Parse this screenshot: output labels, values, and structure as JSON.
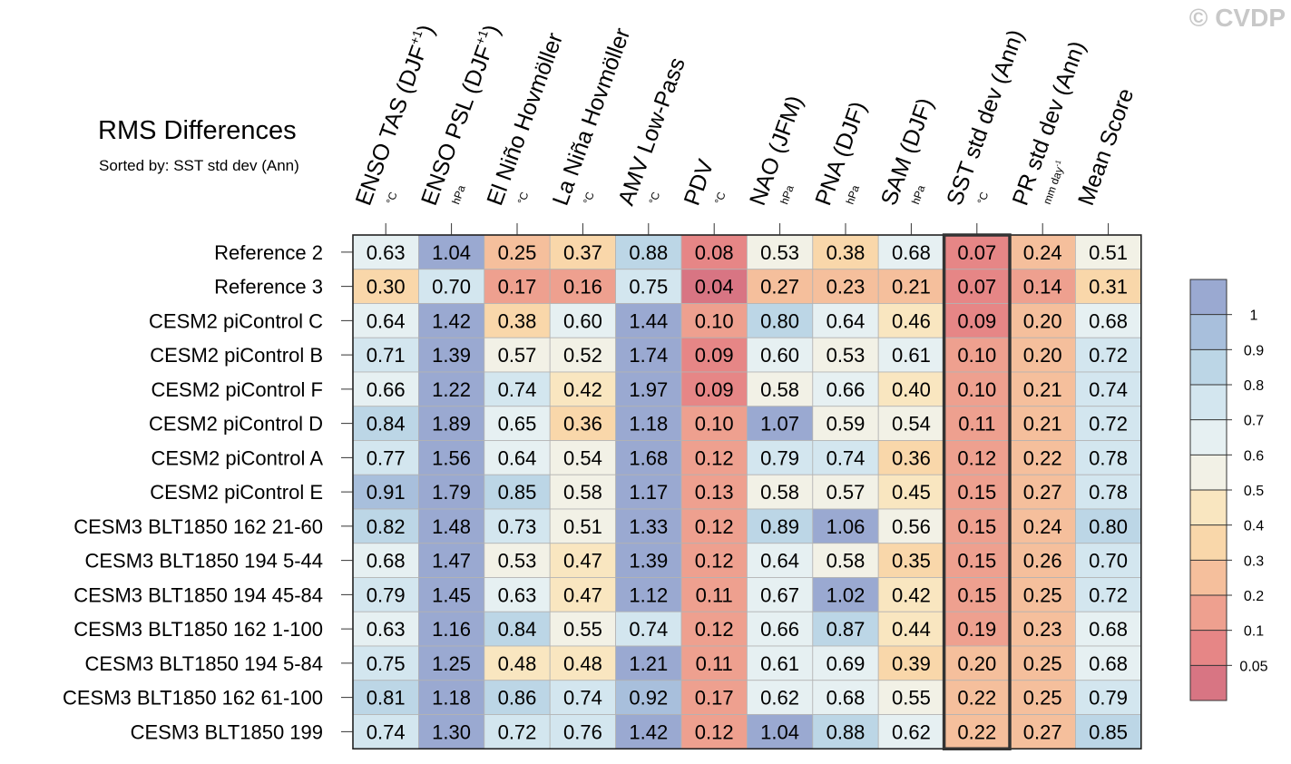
{
  "watermark": "© CVDP",
  "chart_data": {
    "type": "heatmap",
    "title": "RMS Differences",
    "subtitle": "Sorted by: SST std dev (Ann)",
    "highlight_column": 9,
    "columns": [
      {
        "label": "ENSO TAS (DJF",
        "sup": "+1",
        "suffix": ")",
        "unit": "°C"
      },
      {
        "label": "ENSO PSL (DJF",
        "sup": "+1",
        "suffix": ")",
        "unit": "hPa"
      },
      {
        "label": "El Niño Hovmöller",
        "sup": "",
        "suffix": "",
        "unit": "°C"
      },
      {
        "label": "La Niña Hovmöller",
        "sup": "",
        "suffix": "",
        "unit": "°C"
      },
      {
        "label": "AMV Low-Pass",
        "sup": "",
        "suffix": "",
        "unit": "°C"
      },
      {
        "label": "PDV",
        "sup": "",
        "suffix": "",
        "unit": "°C"
      },
      {
        "label": "NAO (JFM)",
        "sup": "",
        "suffix": "",
        "unit": "hPa"
      },
      {
        "label": "PNA (DJF)",
        "sup": "",
        "suffix": "",
        "unit": "hPa"
      },
      {
        "label": "SAM (DJF)",
        "sup": "",
        "suffix": "",
        "unit": "hPa"
      },
      {
        "label": "SST std dev (Ann)",
        "sup": "",
        "suffix": "",
        "unit": "°C"
      },
      {
        "label": "PR std dev (Ann)",
        "sup": "",
        "suffix": "",
        "unit": "mm day",
        "unit_sup": "-1"
      },
      {
        "label": "Mean Score",
        "sup": "",
        "suffix": "",
        "unit": ""
      }
    ],
    "rows": [
      {
        "name": "Reference 2",
        "values": [
          "0.63",
          "1.04",
          "0.25",
          "0.37",
          "0.88",
          "0.08",
          "0.53",
          "0.38",
          "0.68",
          "0.07",
          "0.24",
          "0.51"
        ]
      },
      {
        "name": "Reference 3",
        "values": [
          "0.30",
          "0.70",
          "0.17",
          "0.16",
          "0.75",
          "0.04",
          "0.27",
          "0.23",
          "0.21",
          "0.07",
          "0.14",
          "0.31"
        ]
      },
      {
        "name": "CESM2 piControl C",
        "values": [
          "0.64",
          "1.42",
          "0.38",
          "0.60",
          "1.44",
          "0.10",
          "0.80",
          "0.64",
          "0.46",
          "0.09",
          "0.20",
          "0.68"
        ]
      },
      {
        "name": "CESM2 piControl B",
        "values": [
          "0.71",
          "1.39",
          "0.57",
          "0.52",
          "1.74",
          "0.09",
          "0.60",
          "0.53",
          "0.61",
          "0.10",
          "0.20",
          "0.72"
        ]
      },
      {
        "name": "CESM2 piControl F",
        "values": [
          "0.66",
          "1.22",
          "0.74",
          "0.42",
          "1.97",
          "0.09",
          "0.58",
          "0.66",
          "0.40",
          "0.10",
          "0.21",
          "0.74"
        ]
      },
      {
        "name": "CESM2 piControl D",
        "values": [
          "0.84",
          "1.89",
          "0.65",
          "0.36",
          "1.18",
          "0.10",
          "1.07",
          "0.59",
          "0.54",
          "0.11",
          "0.21",
          "0.72"
        ]
      },
      {
        "name": "CESM2 piControl A",
        "values": [
          "0.77",
          "1.56",
          "0.64",
          "0.54",
          "1.68",
          "0.12",
          "0.79",
          "0.74",
          "0.36",
          "0.12",
          "0.22",
          "0.78"
        ]
      },
      {
        "name": "CESM2 piControl E",
        "values": [
          "0.91",
          "1.79",
          "0.85",
          "0.58",
          "1.17",
          "0.13",
          "0.58",
          "0.57",
          "0.45",
          "0.15",
          "0.27",
          "0.78"
        ]
      },
      {
        "name": "CESM3 BLT1850 162 21-60",
        "values": [
          "0.82",
          "1.48",
          "0.73",
          "0.51",
          "1.33",
          "0.12",
          "0.89",
          "1.06",
          "0.56",
          "0.15",
          "0.24",
          "0.80"
        ]
      },
      {
        "name": "CESM3 BLT1850 194 5-44",
        "values": [
          "0.68",
          "1.47",
          "0.53",
          "0.47",
          "1.39",
          "0.12",
          "0.64",
          "0.58",
          "0.35",
          "0.15",
          "0.26",
          "0.70"
        ]
      },
      {
        "name": "CESM3 BLT1850 194 45-84",
        "values": [
          "0.79",
          "1.45",
          "0.63",
          "0.47",
          "1.12",
          "0.11",
          "0.67",
          "1.02",
          "0.42",
          "0.15",
          "0.25",
          "0.72"
        ]
      },
      {
        "name": "CESM3 BLT1850 162 1-100",
        "values": [
          "0.63",
          "1.16",
          "0.84",
          "0.55",
          "0.74",
          "0.12",
          "0.66",
          "0.87",
          "0.44",
          "0.19",
          "0.23",
          "0.68"
        ]
      },
      {
        "name": "CESM3 BLT1850 194 5-84",
        "values": [
          "0.75",
          "1.25",
          "0.48",
          "0.48",
          "1.21",
          "0.11",
          "0.61",
          "0.69",
          "0.39",
          "0.20",
          "0.25",
          "0.68"
        ]
      },
      {
        "name": "CESM3 BLT1850 162 61-100",
        "values": [
          "0.81",
          "1.18",
          "0.86",
          "0.74",
          "0.92",
          "0.17",
          "0.62",
          "0.68",
          "0.55",
          "0.22",
          "0.25",
          "0.79"
        ]
      },
      {
        "name": "CESM3 BLT1850 199",
        "values": [
          "0.74",
          "1.30",
          "0.72",
          "0.76",
          "1.42",
          "0.12",
          "1.04",
          "0.88",
          "0.62",
          "0.22",
          "0.27",
          "0.85"
        ]
      }
    ],
    "colorbar": {
      "labels": [
        "1",
        "0.9",
        "0.8",
        "0.7",
        "0.6",
        "0.5",
        "0.4",
        "0.3",
        "0.2",
        "0.1",
        "0.05"
      ],
      "thresholds": [
        1,
        0.9,
        0.8,
        0.7,
        0.6,
        0.5,
        0.4,
        0.3,
        0.2,
        0.1,
        0.05
      ],
      "colors": [
        "#9aa9d1",
        "#a8bfdc",
        "#bcd6e6",
        "#d3e6ef",
        "#e6f0f2",
        "#f2f1e6",
        "#f9e6c0",
        "#f9d7aa",
        "#f5bf9c",
        "#eea08f",
        "#e68686",
        "#d87583"
      ]
    }
  }
}
